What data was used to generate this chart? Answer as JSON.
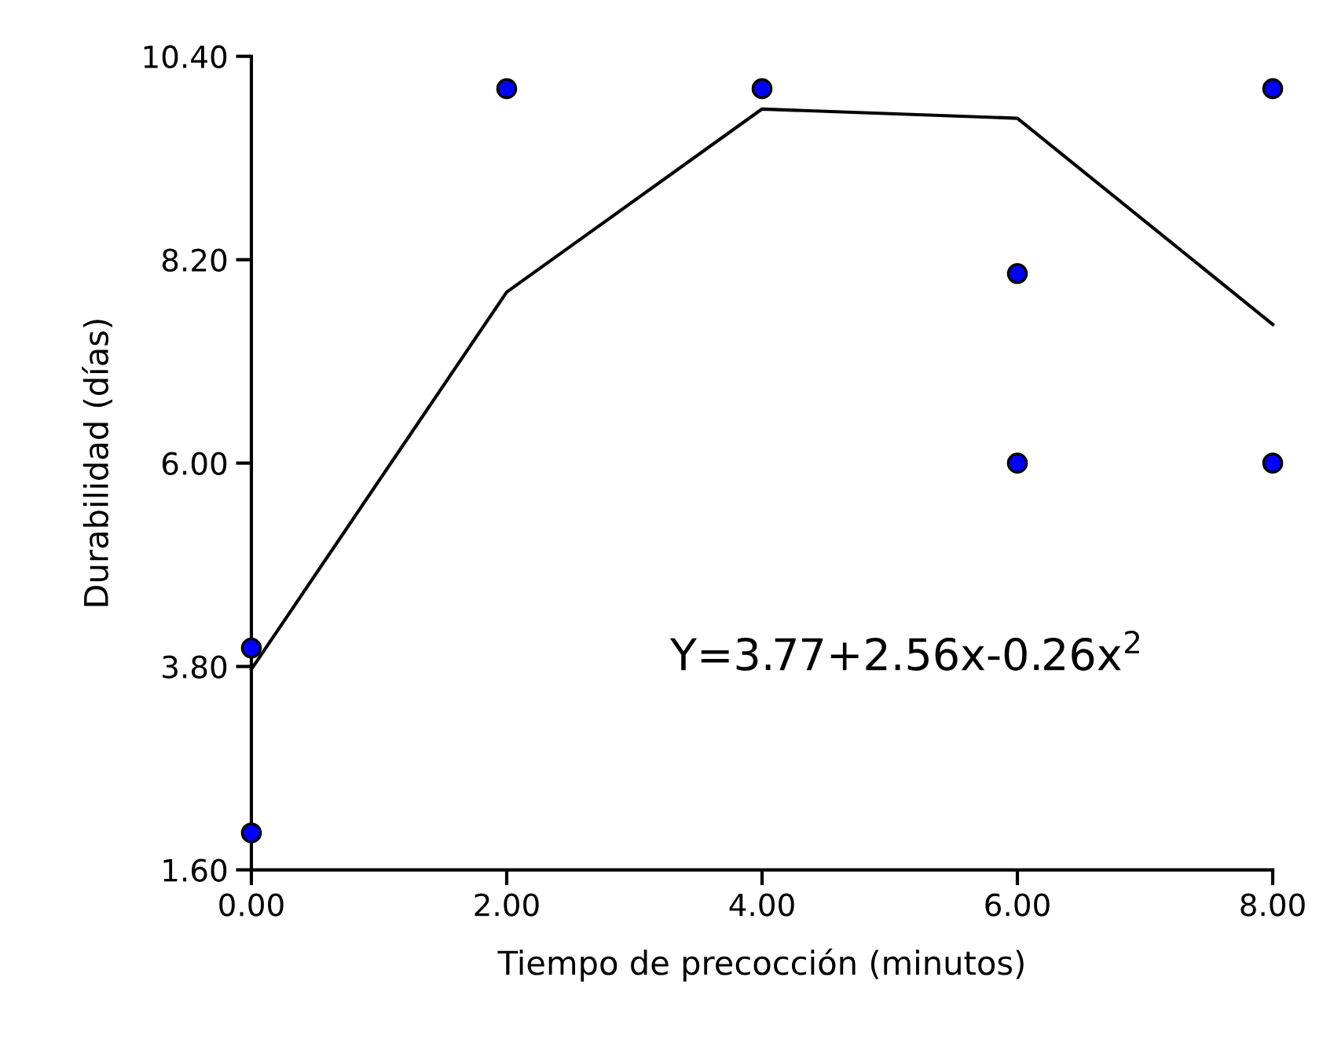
{
  "chart_data": {
    "type": "scatter",
    "xlabel": "Tiempo de precocción (minutos)",
    "ylabel": "Durabilidad (días)",
    "series": [
      {
        "color": "#0000ff",
        "marker": "circle",
        "x": [
          0,
          0,
          2,
          4,
          6,
          6,
          8,
          8
        ],
        "values": [
          4.0,
          2.0,
          10.05,
          10.05,
          8.05,
          6.0,
          10.05,
          6.0
        ]
      },
      {
        "type": "line",
        "color": "#000000",
        "marker": "none",
        "line_style": "solid",
        "x": [
          0,
          2,
          4,
          6,
          8
        ],
        "values": [
          3.77,
          7.85,
          9.83,
          9.73,
          7.5
        ]
      }
    ],
    "annotations": [
      "Y=3.77+2.56x-0.26x$^{2}$"
    ],
    "xlim": [
      0,
      8
    ],
    "ylim": [
      1.6,
      10.4
    ],
    "xticks": [
      {
        "value": 0,
        "label": "0.00"
      },
      {
        "value": 2,
        "label": "2.00"
      },
      {
        "value": 4,
        "label": "4.00"
      },
      {
        "value": 6,
        "label": "6.00"
      },
      {
        "value": 8,
        "label": "8.00"
      }
    ],
    "yticks": [
      {
        "value": 1.6,
        "label": "1.60"
      },
      {
        "value": 3.8,
        "label": "3.80"
      },
      {
        "value": 6,
        "label": "6.00"
      },
      {
        "value": 8.2,
        "label": "8.20"
      },
      {
        "value": 10.4,
        "label": "10.40"
      }
    ],
    "grid": false
  }
}
